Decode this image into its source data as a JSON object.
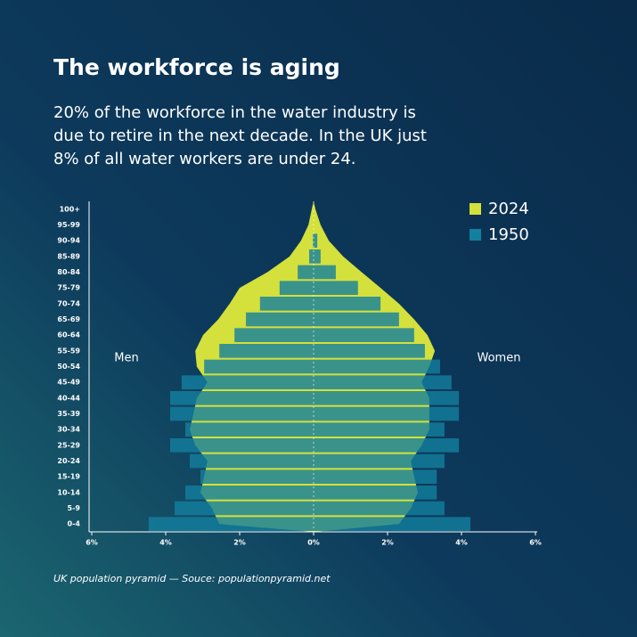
{
  "chart_data": {
    "type": "pyramid",
    "title": "The workforce is aging",
    "subtitle": [
      "20% of the workforce in the water industry is",
      "due to retire in the next decade. In the UK just",
      "8% of all water workers are under 24."
    ],
    "footnote": "UK population pyramid — Souce: populationpyramid.net",
    "left_label": "Men",
    "right_label": "Women",
    "categories": [
      "0-4",
      "5-9",
      "10-14",
      "15-19",
      "20-24",
      "25-29",
      "30-34",
      "35-39",
      "40-44",
      "45-49",
      "50-54",
      "55-59",
      "60-64",
      "65-69",
      "70-74",
      "75-79",
      "80-84",
      "85-89",
      "90-94",
      "95-99",
      "100+"
    ],
    "series": [
      {
        "name": "2024",
        "color": "#d4e03c",
        "style": "area",
        "men": [
          2.55,
          2.75,
          3.06,
          2.96,
          2.87,
          3.2,
          3.35,
          3.25,
          3.16,
          2.87,
          3.16,
          3.2,
          2.99,
          2.58,
          2.27,
          2.0,
          1.25,
          0.65,
          0.34,
          0.14,
          0.05
        ],
        "women": [
          2.31,
          2.63,
          2.82,
          2.72,
          2.63,
          2.92,
          3.13,
          3.13,
          3.13,
          2.92,
          3.13,
          3.28,
          3.08,
          2.72,
          2.31,
          1.81,
          1.3,
          0.8,
          0.41,
          0.19,
          0.05
        ]
      },
      {
        "name": "1950",
        "color": "#13809f",
        "style": "bar",
        "men": [
          4.46,
          3.76,
          3.47,
          3.06,
          3.35,
          3.88,
          3.47,
          3.88,
          3.88,
          3.57,
          2.96,
          2.55,
          2.14,
          1.83,
          1.45,
          0.92,
          0.43,
          0.12,
          0.02,
          0,
          0
        ],
        "women": [
          4.24,
          3.54,
          3.33,
          3.33,
          3.54,
          3.93,
          3.54,
          3.93,
          3.93,
          3.73,
          3.42,
          3.01,
          2.72,
          2.31,
          1.81,
          1.2,
          0.6,
          0.19,
          0.1,
          0,
          0
        ]
      }
    ],
    "xlim": [
      -6,
      6
    ],
    "xticks": [
      {
        "value": -6,
        "label": "6%"
      },
      {
        "value": -4,
        "label": "4%"
      },
      {
        "value": -2,
        "label": "2%"
      },
      {
        "value": 0,
        "label": "0%"
      },
      {
        "value": 2,
        "label": "2%"
      },
      {
        "value": 4,
        "label": "4%"
      },
      {
        "value": 6,
        "label": "6%"
      }
    ]
  }
}
